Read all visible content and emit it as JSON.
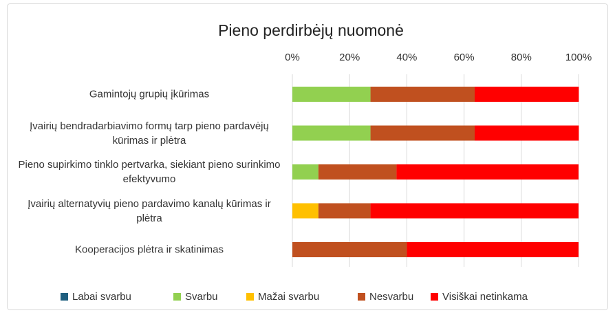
{
  "chart_data": {
    "type": "stacked_bar_horizontal",
    "title": "Pieno perdirbėjų nuomonė",
    "categories": [
      "Gamintojų grupių įkūrimas",
      "Įvairių bendradarbiavimo formų tarp pieno pardavėjų kūrimas ir plėtra",
      "Pieno supirkimo tinklo pertvarka, siekiant pieno surinkimo efektyvumo",
      "Įvairių alternatyvių pieno pardavimo kanalų kūrimas ir plėtra",
      "Kooperacijos plėtra ir skatinimas"
    ],
    "series": [
      {
        "name": "Labai svarbu",
        "color": "#1f5f7f",
        "values": [
          0,
          0,
          0,
          0,
          0
        ]
      },
      {
        "name": "Svarbu",
        "color": "#92d050",
        "values": [
          27.3,
          27.3,
          9.1,
          0,
          0
        ]
      },
      {
        "name": "Mažai svarbu",
        "color": "#ffc000",
        "values": [
          0,
          0,
          0,
          9.1,
          0
        ]
      },
      {
        "name": "Nesvarbu",
        "color": "#c0501f",
        "values": [
          36.4,
          36.4,
          27.3,
          18.2,
          40
        ]
      },
      {
        "name": "Visiškai netinkama",
        "color": "#ff0000",
        "values": [
          36.4,
          36.4,
          63.6,
          72.7,
          60
        ]
      }
    ],
    "xlim": [
      0,
      100
    ],
    "xticks": [
      {
        "value": 0,
        "label": "0%"
      },
      {
        "value": 20,
        "label": "20%"
      },
      {
        "value": 40,
        "label": "40%"
      },
      {
        "value": 60,
        "label": "60%"
      },
      {
        "value": 80,
        "label": "80%"
      },
      {
        "value": 100,
        "label": "100%"
      }
    ],
    "grid": true,
    "legend": "bottom"
  }
}
